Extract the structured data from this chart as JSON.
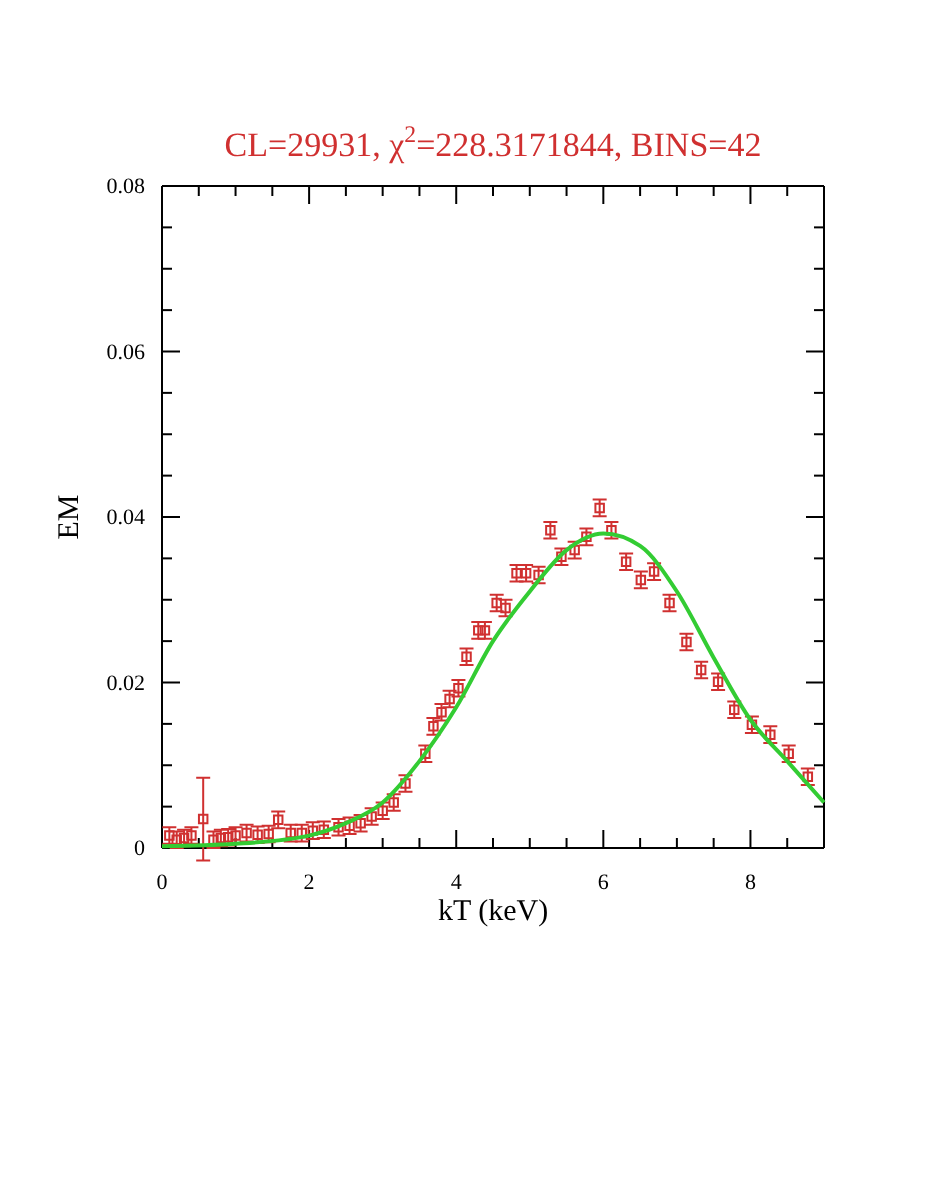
{
  "chart_data": {
    "type": "scatter",
    "title": "CL=29931, χ$^{2}$=228.3171844, BINS=42",
    "xlabel": "kT (keV)",
    "ylabel": "EM",
    "xlim": [
      0,
      9
    ],
    "ylim": [
      0,
      0.08
    ],
    "xticks": [
      0,
      {
        "value": 0.5,
        "label": null
      },
      {
        "value": 1,
        "label": null
      },
      {
        "value": 1.5,
        "label": null
      },
      2,
      {
        "value": 2.5,
        "label": null
      },
      {
        "value": 3,
        "label": null
      },
      {
        "value": 3.5,
        "label": null
      },
      4,
      {
        "value": 4.5,
        "label": null
      },
      {
        "value": 5,
        "label": null
      },
      {
        "value": 5.5,
        "label": null
      },
      6,
      {
        "value": 6.5,
        "label": null
      },
      {
        "value": 7,
        "label": null
      },
      {
        "value": 7.5,
        "label": null
      },
      8,
      {
        "value": 8.5,
        "label": null
      }
    ],
    "yticks": [
      0,
      {
        "value": 0.005,
        "label": null
      },
      {
        "value": 0.01,
        "label": null
      },
      {
        "value": 0.015,
        "label": null
      },
      0.02,
      {
        "value": 0.025,
        "label": null
      },
      {
        "value": 0.03,
        "label": null
      },
      {
        "value": 0.035,
        "label": null
      },
      0.04,
      {
        "value": 0.045,
        "label": null
      },
      {
        "value": 0.05,
        "label": null
      },
      {
        "value": 0.055,
        "label": null
      },
      0.06,
      {
        "value": 0.065,
        "label": null
      },
      {
        "value": 0.07,
        "label": null
      },
      {
        "value": 0.075,
        "label": null
      },
      0.08
    ],
    "grid": false,
    "marker": "square",
    "series": [
      {
        "color": "#d03030",
        "x": [
          0.1,
          0.2,
          0.3,
          0.4,
          0.56,
          0.7,
          0.8,
          0.9,
          1.0,
          1.15,
          1.3,
          1.45,
          1.58,
          1.75,
          1.9,
          2.05,
          2.2,
          2.4,
          2.55,
          2.7,
          2.85,
          3.0,
          3.15,
          3.31,
          3.58,
          3.69,
          3.8,
          3.91,
          4.03,
          4.14,
          4.3,
          4.39,
          4.55,
          4.67,
          4.82,
          4.95,
          5.12,
          5.28,
          5.43,
          5.61,
          5.77,
          5.95,
          6.11,
          6.31,
          6.51,
          6.69,
          6.9,
          7.13,
          7.33,
          7.56,
          7.78,
          8.02,
          8.27,
          8.52,
          8.78
        ],
        "values": [
          0.0015,
          0.001,
          0.0012,
          0.0015,
          0.0035,
          0.001,
          0.0012,
          0.0013,
          0.0015,
          0.0018,
          0.0016,
          0.0017,
          0.0034,
          0.0018,
          0.0018,
          0.0021,
          0.0022,
          0.0025,
          0.0027,
          0.003,
          0.0038,
          0.0045,
          0.0055,
          0.0078,
          0.0114,
          0.0147,
          0.0164,
          0.018,
          0.0193,
          0.0231,
          0.0263,
          0.0263,
          0.0296,
          0.029,
          0.0332,
          0.0332,
          0.033,
          0.0384,
          0.0352,
          0.036,
          0.0376,
          0.0411,
          0.0384,
          0.0346,
          0.0324,
          0.0334,
          0.0296,
          0.0249,
          0.0215,
          0.0201,
          0.0167,
          0.0149,
          0.0137,
          0.0114,
          0.0086
        ],
        "errors": [
          0.001,
          0.001,
          0.001,
          0.001,
          0.005,
          0.001,
          0.001,
          0.001,
          0.001,
          0.001,
          0.001,
          0.001,
          0.001,
          0.001,
          0.001,
          0.001,
          0.001,
          0.001,
          0.001,
          0.001,
          0.001,
          0.001,
          0.001,
          0.001,
          0.001,
          0.001,
          0.001,
          0.001,
          0.001,
          0.001,
          0.001,
          0.001,
          0.001,
          0.001,
          0.001,
          0.001,
          0.001,
          0.001,
          0.001,
          0.001,
          0.001,
          0.001,
          0.001,
          0.001,
          0.001,
          0.001,
          0.001,
          0.001,
          0.001,
          0.001,
          0.001,
          0.001,
          0.001,
          0.001,
          0.001
        ]
      },
      {
        "type": "line",
        "color": "#33cc33",
        "marker": "none",
        "x": [
          0,
          1,
          2,
          2.5,
          3,
          3.5,
          4,
          4.5,
          5,
          5.5,
          6,
          6.5,
          7,
          7.5,
          8,
          8.5,
          9
        ],
        "values": [
          0.0002,
          0.0005,
          0.0015,
          0.003,
          0.0055,
          0.0105,
          0.017,
          0.025,
          0.031,
          0.036,
          0.038,
          0.0365,
          0.031,
          0.023,
          0.0155,
          0.0105,
          0.0055
        ]
      }
    ]
  }
}
